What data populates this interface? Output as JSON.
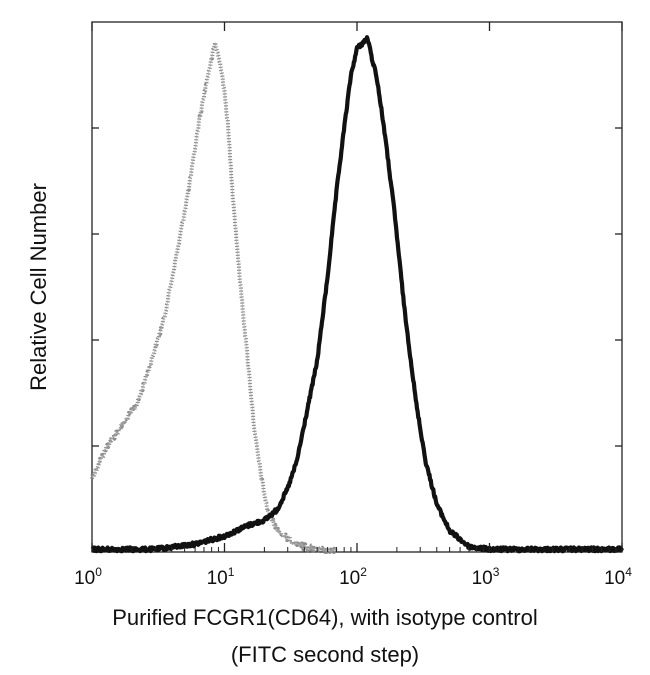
{
  "chart_data": {
    "type": "area",
    "xlabel_lines": [
      "Purified FCGR1(CD64), with isotype control",
      "(FITC second step)"
    ],
    "ylabel": "Relative Cell Number",
    "x_scale": "log",
    "xlim": [
      1,
      10000
    ],
    "ylim": [
      0,
      100
    ],
    "x_ticks": [
      {
        "base": "10",
        "exp": "0",
        "value": 1
      },
      {
        "base": "10",
        "exp": "1",
        "value": 10
      },
      {
        "base": "10",
        "exp": "2",
        "value": 100
      },
      {
        "base": "10",
        "exp": "3",
        "value": 1000
      },
      {
        "base": "10",
        "exp": "4",
        "value": 10000
      }
    ],
    "grid": false,
    "legend": false,
    "series": [
      {
        "style": "dotted-gray",
        "color": "#777777",
        "x": [
          1,
          1.3,
          1.7,
          2.2,
          2.8,
          3.5,
          4.5,
          5.5,
          6.5,
          7.5,
          8.5,
          9.5,
          10.5,
          11.5,
          13,
          15,
          17,
          19,
          21,
          24,
          28,
          33,
          40,
          50,
          70
        ],
        "y": [
          14,
          20,
          24,
          28,
          36,
          44,
          58,
          70,
          82,
          90,
          96,
          91,
          82,
          68,
          52,
          36,
          22,
          14,
          8,
          5,
          3,
          2,
          1,
          0.5,
          0
        ]
      },
      {
        "style": "solid-black",
        "color": "#111111",
        "x": [
          1,
          3,
          6,
          10,
          15,
          20,
          25,
          30,
          35,
          40,
          50,
          60,
          70,
          80,
          90,
          100,
          110,
          120,
          130,
          140,
          160,
          190,
          230,
          280,
          330,
          400,
          500,
          700,
          1000,
          10000
        ],
        "y": [
          0.5,
          0.5,
          1.5,
          3,
          5,
          6,
          8,
          12,
          17,
          24,
          36,
          52,
          68,
          80,
          90,
          95,
          96,
          97,
          93,
          90,
          80,
          65,
          45,
          28,
          17,
          9,
          4,
          1,
          0.5,
          0.5
        ]
      }
    ]
  }
}
